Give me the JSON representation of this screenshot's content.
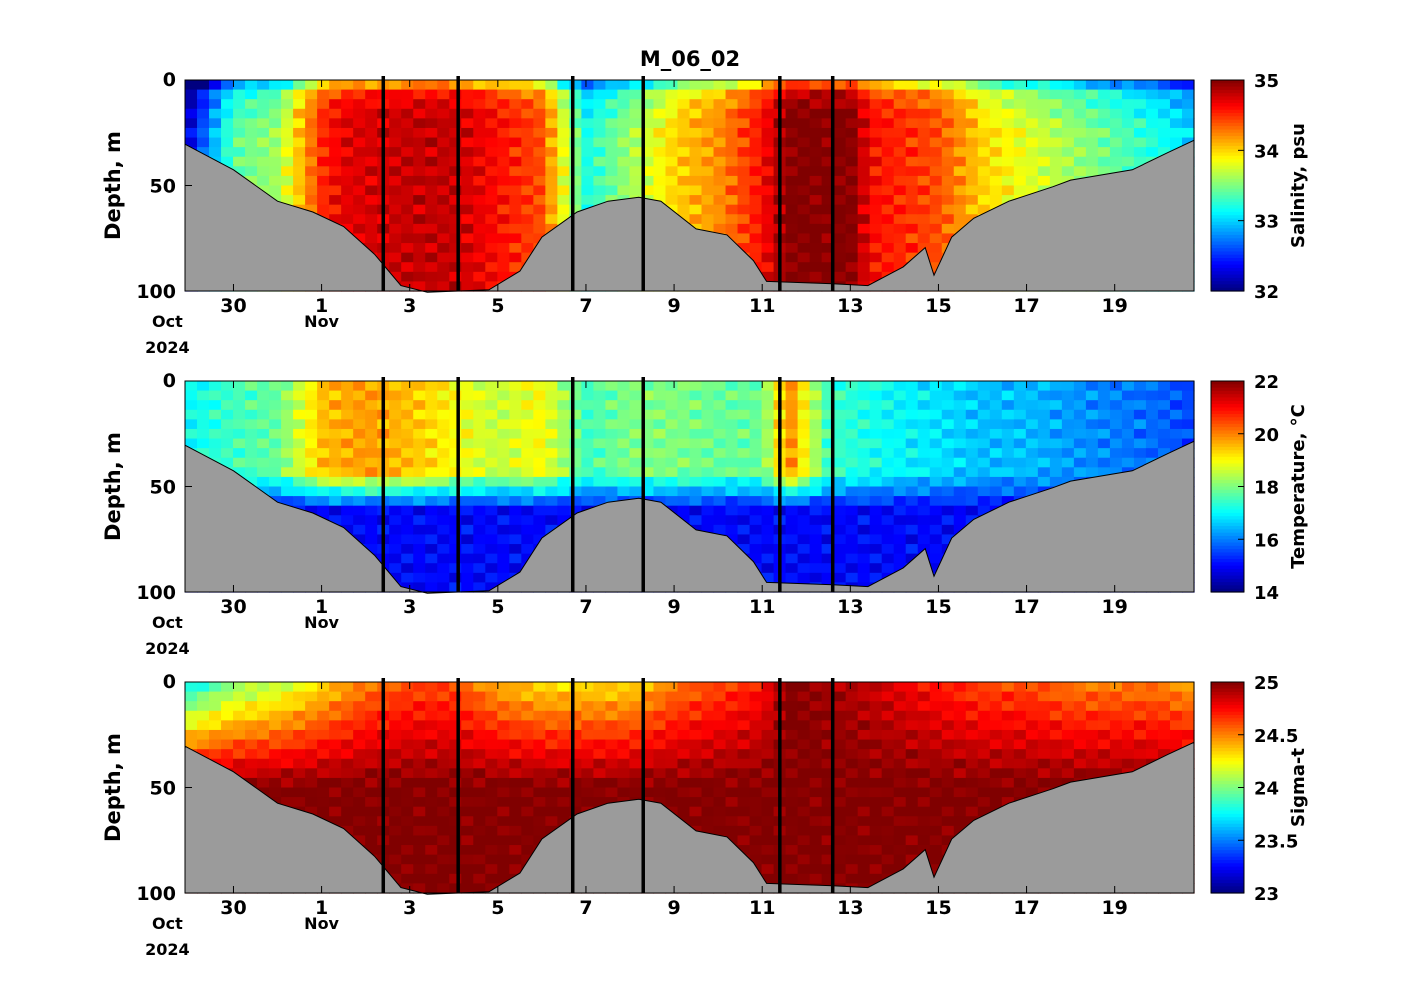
{
  "figure": {
    "title": "M_06_02"
  },
  "x_axis": {
    "ticks": [
      {
        "day": 30,
        "label": "30"
      },
      {
        "day": 32,
        "label": "1"
      },
      {
        "day": 34,
        "label": "3"
      },
      {
        "day": 36,
        "label": "5"
      },
      {
        "day": 38,
        "label": "7"
      },
      {
        "day": 40,
        "label": "9"
      },
      {
        "day": 42,
        "label": "11"
      },
      {
        "day": 44,
        "label": "13"
      },
      {
        "day": 46,
        "label": "15"
      },
      {
        "day": 48,
        "label": "17"
      },
      {
        "day": 50,
        "label": "19"
      }
    ],
    "month_labels": [
      {
        "day": 28.5,
        "label": "Oct",
        "row": 1
      },
      {
        "day": 28.5,
        "label": "2024",
        "row": 2
      },
      {
        "day": 32,
        "label": "Nov",
        "row": 1
      }
    ]
  },
  "panels": [
    {
      "id": "salinity",
      "ylabel": "Depth, m",
      "cbar_label": "Salinity, psu",
      "cbar_ticks": [
        "35",
        "34",
        "33",
        "32"
      ]
    },
    {
      "id": "temperature",
      "ylabel": "Depth, m",
      "cbar_label": "Temperature, °C",
      "cbar_ticks": [
        "22",
        "20",
        "18",
        "16",
        "14"
      ]
    },
    {
      "id": "sigma",
      "ylabel": "Depth, m",
      "cbar_label": "Sigma-t",
      "cbar_ticks": [
        "25",
        "24.5",
        "24",
        "23.5",
        "23"
      ]
    }
  ],
  "chart_data": [
    {
      "type": "heatmap",
      "title": "M_06_02",
      "variable": "Salinity",
      "unit": "psu",
      "ylabel": "Depth, m",
      "ylim": [
        100,
        0
      ],
      "yticks": [
        0,
        50,
        100
      ],
      "xlim": [
        28.9,
        51.8
      ],
      "x_unit": "day (Oct 28 = 28; Nov 1 = 32)",
      "clim": [
        32,
        35
      ],
      "colormap": "jet",
      "vertical_lines_day": [
        33.4,
        35.1,
        37.7,
        39.3,
        42.4,
        43.6
      ],
      "seafloor_depth": [
        [
          28.9,
          31
        ],
        [
          30.0,
          42
        ],
        [
          31.0,
          58
        ],
        [
          31.8,
          62
        ],
        [
          32.5,
          70
        ],
        [
          33.2,
          82
        ],
        [
          33.8,
          98
        ],
        [
          34.4,
          100
        ],
        [
          35.8,
          100
        ],
        [
          36.5,
          90
        ],
        [
          37.0,
          75
        ],
        [
          37.8,
          62
        ],
        [
          38.5,
          58
        ],
        [
          39.2,
          55
        ],
        [
          39.7,
          58
        ],
        [
          40.5,
          70
        ],
        [
          41.2,
          74
        ],
        [
          41.8,
          85
        ],
        [
          42.1,
          96
        ],
        [
          43.6,
          96
        ],
        [
          44.4,
          98
        ],
        [
          45.2,
          88
        ],
        [
          45.7,
          80
        ],
        [
          45.9,
          92
        ],
        [
          46.3,
          75
        ],
        [
          46.8,
          65
        ],
        [
          47.6,
          58
        ],
        [
          48.6,
          50
        ],
        [
          49.0,
          48
        ],
        [
          50.4,
          42
        ],
        [
          51.2,
          35
        ],
        [
          51.8,
          28
        ]
      ],
      "water_columns": [
        [
          28.9,
          32.2
        ],
        [
          30.0,
          33.4
        ],
        [
          31.0,
          33.6
        ],
        [
          32.0,
          34.5
        ],
        [
          32.5,
          34.7
        ],
        [
          34.0,
          34.8
        ],
        [
          35.0,
          34.8
        ],
        [
          36.0,
          34.6
        ],
        [
          37.0,
          34.4
        ],
        [
          38.0,
          33.2
        ],
        [
          39.0,
          33.6
        ],
        [
          40.0,
          34.0
        ],
        [
          41.0,
          34.2
        ],
        [
          42.0,
          34.6
        ],
        [
          42.6,
          35.0
        ],
        [
          44.0,
          35.0
        ],
        [
          44.5,
          34.6
        ],
        [
          46.0,
          34.4
        ],
        [
          47.0,
          34.0
        ],
        [
          48.0,
          33.8
        ],
        [
          49.0,
          33.6
        ],
        [
          50.0,
          33.4
        ],
        [
          51.0,
          33.2
        ],
        [
          51.8,
          33.0
        ]
      ]
    },
    {
      "type": "heatmap",
      "variable": "Temperature",
      "unit": "°C",
      "ylabel": "Depth, m",
      "ylim": [
        100,
        0
      ],
      "yticks": [
        0,
        50,
        100
      ],
      "xlim": [
        28.9,
        51.8
      ],
      "x_unit": "day (Oct 28 = 28; Nov 1 = 32)",
      "clim": [
        14,
        22
      ],
      "colormap": "jet",
      "vertical_lines_day": [
        33.4,
        35.1,
        37.7,
        39.3,
        42.4,
        43.6
      ],
      "seafloor_depth": [
        [
          28.9,
          31
        ],
        [
          30.0,
          42
        ],
        [
          31.0,
          58
        ],
        [
          31.8,
          62
        ],
        [
          32.5,
          70
        ],
        [
          33.2,
          82
        ],
        [
          33.8,
          98
        ],
        [
          34.4,
          100
        ],
        [
          35.8,
          100
        ],
        [
          36.5,
          90
        ],
        [
          37.0,
          75
        ],
        [
          37.8,
          62
        ],
        [
          38.5,
          58
        ],
        [
          39.2,
          55
        ],
        [
          39.7,
          58
        ],
        [
          40.5,
          70
        ],
        [
          41.2,
          74
        ],
        [
          41.8,
          85
        ],
        [
          42.1,
          96
        ],
        [
          43.6,
          96
        ],
        [
          44.4,
          98
        ],
        [
          45.2,
          88
        ],
        [
          45.7,
          80
        ],
        [
          45.9,
          92
        ],
        [
          46.3,
          75
        ],
        [
          46.8,
          65
        ],
        [
          47.6,
          58
        ],
        [
          48.6,
          50
        ],
        [
          49.0,
          48
        ],
        [
          50.4,
          42
        ],
        [
          51.2,
          35
        ],
        [
          51.8,
          28
        ]
      ],
      "surface_temperature": [
        [
          28.9,
          17.0
        ],
        [
          30.0,
          17.5
        ],
        [
          31.0,
          17.8
        ],
        [
          32.0,
          19.5
        ],
        [
          33.0,
          19.8
        ],
        [
          34.0,
          19.5
        ],
        [
          35.0,
          19.0
        ],
        [
          36.0,
          18.5
        ],
        [
          37.0,
          19.0
        ],
        [
          38.0,
          17.5
        ],
        [
          39.0,
          18.0
        ],
        [
          40.0,
          18.0
        ],
        [
          41.0,
          17.8
        ],
        [
          42.0,
          17.8
        ],
        [
          42.6,
          20.0
        ],
        [
          43.5,
          17.5
        ],
        [
          45.0,
          17.0
        ],
        [
          46.0,
          16.8
        ],
        [
          47.0,
          16.5
        ],
        [
          48.0,
          16.5
        ],
        [
          49.0,
          16.2
        ],
        [
          50.0,
          16.0
        ],
        [
          51.0,
          15.8
        ],
        [
          51.8,
          15.5
        ]
      ],
      "bottom_temperature": 15.0,
      "thermocline_depth": 55
    },
    {
      "type": "heatmap",
      "variable": "Sigma-t",
      "unit": "",
      "ylabel": "Depth, m",
      "ylim": [
        100,
        0
      ],
      "yticks": [
        0,
        50,
        100
      ],
      "xlim": [
        28.9,
        51.8
      ],
      "x_unit": "day (Oct 28 = 28; Nov 1 = 32)",
      "clim": [
        23,
        25
      ],
      "colormap": "jet",
      "vertical_lines_day": [
        33.4,
        35.1,
        37.7,
        39.3,
        42.4,
        43.6
      ],
      "seafloor_depth": [
        [
          28.9,
          31
        ],
        [
          30.0,
          42
        ],
        [
          31.0,
          58
        ],
        [
          31.8,
          62
        ],
        [
          32.5,
          70
        ],
        [
          33.2,
          82
        ],
        [
          33.8,
          98
        ],
        [
          34.4,
          100
        ],
        [
          35.8,
          100
        ],
        [
          36.5,
          90
        ],
        [
          37.0,
          75
        ],
        [
          37.8,
          62
        ],
        [
          38.5,
          58
        ],
        [
          39.2,
          55
        ],
        [
          39.7,
          58
        ],
        [
          40.5,
          70
        ],
        [
          41.2,
          74
        ],
        [
          41.8,
          85
        ],
        [
          42.1,
          96
        ],
        [
          43.6,
          96
        ],
        [
          44.4,
          98
        ],
        [
          45.2,
          88
        ],
        [
          45.7,
          80
        ],
        [
          45.9,
          92
        ],
        [
          46.3,
          75
        ],
        [
          46.8,
          65
        ],
        [
          47.6,
          58
        ],
        [
          48.6,
          50
        ],
        [
          49.0,
          48
        ],
        [
          50.4,
          42
        ],
        [
          51.2,
          35
        ],
        [
          51.8,
          28
        ]
      ],
      "surface_sigma": [
        [
          28.9,
          23.7
        ],
        [
          30.0,
          24.0
        ],
        [
          31.0,
          24.1
        ],
        [
          32.0,
          24.3
        ],
        [
          33.0,
          24.5
        ],
        [
          34.0,
          24.6
        ],
        [
          35.0,
          24.6
        ],
        [
          36.0,
          24.4
        ],
        [
          37.0,
          24.3
        ],
        [
          38.0,
          24.3
        ],
        [
          39.0,
          24.3
        ],
        [
          40.0,
          24.5
        ],
        [
          41.0,
          24.6
        ],
        [
          42.0,
          24.7
        ],
        [
          42.6,
          25.0
        ],
        [
          44.0,
          24.9
        ],
        [
          45.0,
          24.8
        ],
        [
          46.0,
          24.7
        ],
        [
          47.0,
          24.6
        ],
        [
          48.0,
          24.6
        ],
        [
          49.0,
          24.5
        ],
        [
          50.0,
          24.5
        ],
        [
          51.0,
          24.5
        ],
        [
          51.8,
          24.4
        ]
      ],
      "bottom_sigma": 25.0
    }
  ]
}
